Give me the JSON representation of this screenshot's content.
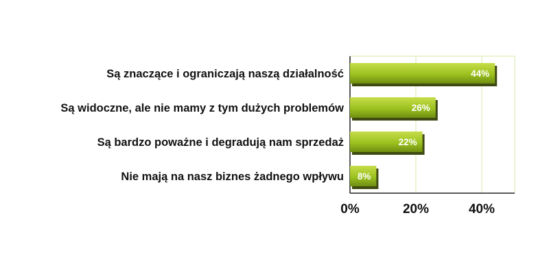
{
  "chart_data": {
    "type": "bar",
    "orientation": "horizontal",
    "categories": [
      "Są znaczące i ograniczają naszą działalność",
      "Są widoczne, ale nie mamy z tym dużych problemów",
      "Są bardzo poważne i degradują nam sprzedaż",
      "Nie mają na nasz biznes żadnego wpływu"
    ],
    "values": [
      44,
      26,
      22,
      8
    ],
    "data_labels": [
      "44%",
      "26%",
      "22%",
      "8%"
    ],
    "xlim": [
      0,
      50
    ],
    "x_ticks": [
      0,
      20,
      40
    ],
    "x_tick_labels": [
      "0%",
      "20%",
      "40%"
    ],
    "grid": true,
    "legend": "none",
    "colors": {
      "bar_top": "#c6dd4a",
      "bar_mid": "#9cc21f",
      "bar_bottom": "#6e8d12",
      "bar_shadow": "#3f4a12",
      "grid": "#d6e8a6",
      "axis": "#222222"
    }
  }
}
